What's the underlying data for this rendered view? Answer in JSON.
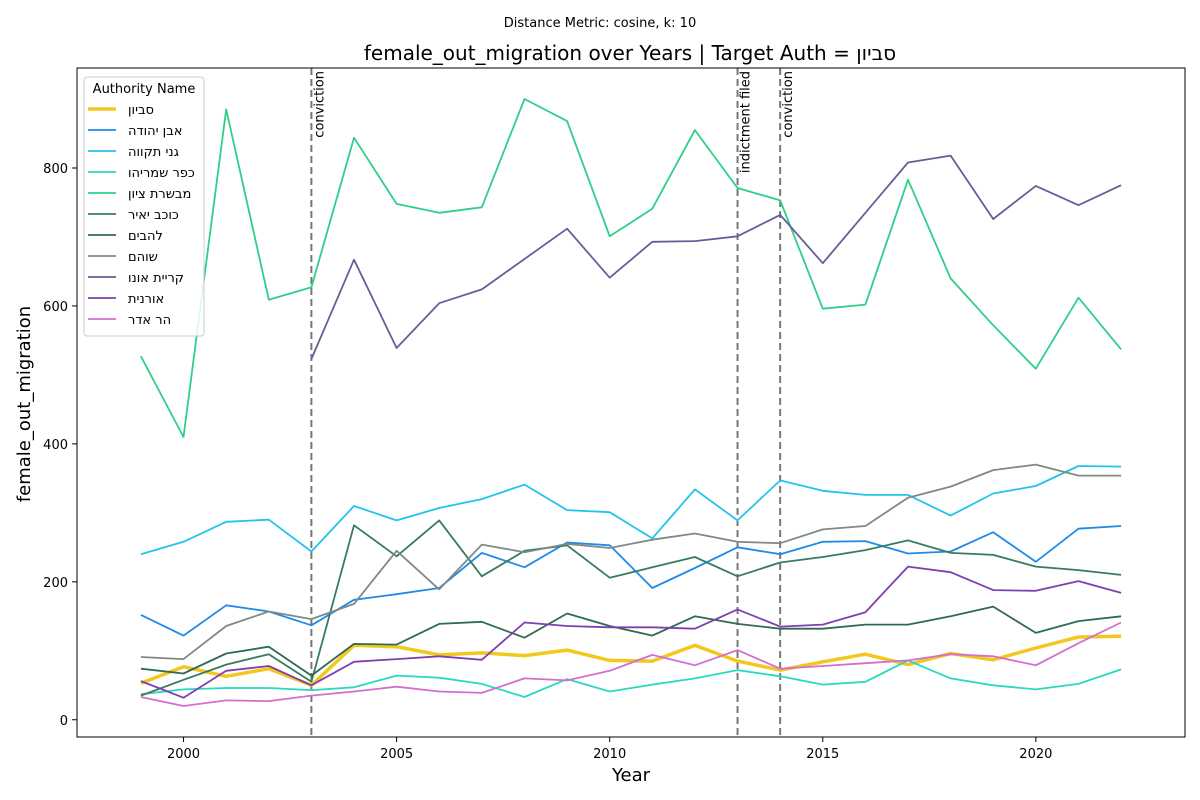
{
  "chart_data": {
    "type": "line",
    "subtitle": "Distance Metric: cosine, k: 10",
    "title": "female_out_migration over Years | Target Auth = סביון",
    "xlabel": "Year",
    "ylabel": "female_out_migration",
    "xlim": [
      1997.5,
      2023.5
    ],
    "ylim": [
      -25,
      945
    ],
    "xticks": [
      2000,
      2005,
      2010,
      2015,
      2020
    ],
    "yticks": [
      0,
      200,
      400,
      600,
      800
    ],
    "legend_title": "Authority Name",
    "legend_position": "top-left",
    "grid": false,
    "vlines": [
      {
        "x": 2003,
        "label": "conviction"
      },
      {
        "x": 2013,
        "label": "indictment filed"
      },
      {
        "x": 2014,
        "label": "conviction"
      }
    ],
    "series": [
      {
        "name": "סביון",
        "color": "#f2c81f",
        "width": 3.5,
        "x": [
          1999,
          2000,
          2001,
          2002,
          2003,
          2004,
          2005,
          2006,
          2007,
          2008,
          2009,
          2010,
          2011,
          2012,
          2013,
          2014,
          2015,
          2016,
          2017,
          2018,
          2019,
          2020,
          2021,
          2022
        ],
        "values": [
          53,
          77,
          63,
          74,
          50,
          108,
          106,
          94,
          97,
          93,
          101,
          86,
          85,
          108,
          85,
          72,
          84,
          95,
          80,
          96,
          87,
          104,
          120,
          121
        ]
      },
      {
        "name": "אבן יהודה",
        "color": "#1f8ae8",
        "width": 1.8,
        "x": [
          1999,
          2000,
          2001,
          2002,
          2003,
          2004,
          2005,
          2006,
          2007,
          2008,
          2009,
          2010,
          2011,
          2012,
          2013,
          2014,
          2015,
          2016,
          2017,
          2018,
          2019,
          2020,
          2021,
          2022
        ],
        "values": [
          152,
          122,
          166,
          157,
          137,
          174,
          182,
          191,
          242,
          221,
          257,
          253,
          191,
          220,
          250,
          240,
          258,
          259,
          241,
          244,
          272,
          229,
          277,
          281
        ]
      },
      {
        "name": "גני תקווה",
        "color": "#22c4ec",
        "width": 1.8,
        "x": [
          1999,
          2000,
          2001,
          2002,
          2003,
          2004,
          2005,
          2006,
          2007,
          2008,
          2009,
          2010,
          2011,
          2012,
          2013,
          2014,
          2015,
          2016,
          2017,
          2018,
          2019,
          2020,
          2021,
          2022
        ],
        "values": [
          240,
          258,
          287,
          290,
          244,
          310,
          289,
          307,
          320,
          341,
          304,
          301,
          263,
          334,
          289,
          347,
          332,
          326,
          326,
          296,
          328,
          339,
          368,
          367
        ]
      },
      {
        "name": "כפר שמריהו",
        "color": "#2ad9c0",
        "width": 1.8,
        "x": [
          1999,
          2000,
          2001,
          2002,
          2003,
          2004,
          2005,
          2006,
          2007,
          2008,
          2009,
          2010,
          2011,
          2012,
          2013,
          2014,
          2015,
          2016,
          2017,
          2018,
          2019,
          2020,
          2021,
          2022
        ],
        "values": [
          37,
          44,
          46,
          46,
          43,
          47,
          64,
          61,
          52,
          33,
          59,
          41,
          51,
          60,
          72,
          63,
          51,
          55,
          86,
          60,
          50,
          44,
          52,
          73
        ]
      },
      {
        "name": "מבשרת ציון",
        "color": "#2ecf88",
        "width": 1.8,
        "x": [
          1999,
          2000,
          2001,
          2002,
          2003,
          2004,
          2005,
          2006,
          2007,
          2008,
          2009,
          2010,
          2011,
          2012,
          2013,
          2014,
          2015,
          2016,
          2017,
          2018,
          2019,
          2020,
          2021,
          2022
        ],
        "values": [
          527,
          410,
          885,
          609,
          627,
          844,
          748,
          735,
          743,
          900,
          868,
          701,
          741,
          855,
          771,
          753,
          596,
          602,
          783,
          640,
          572,
          509,
          612,
          537
        ]
      },
      {
        "name": "כוכב יאיר",
        "color": "#3a7a5e",
        "width": 1.8,
        "x": [
          1999,
          2000,
          2001,
          2002,
          2003,
          2004,
          2005,
          2006,
          2007,
          2008,
          2009,
          2010,
          2011,
          2012,
          2013,
          2014,
          2015,
          2016,
          2017,
          2018,
          2019,
          2020,
          2021,
          2022
        ],
        "values": [
          35,
          58,
          80,
          95,
          55,
          282,
          237,
          289,
          208,
          245,
          253,
          206,
          221,
          236,
          208,
          228,
          236,
          246,
          260,
          242,
          239,
          222,
          217,
          210
        ]
      },
      {
        "name": "להבים",
        "color": "#2f6b52",
        "width": 1.8,
        "x": [
          1999,
          2000,
          2001,
          2002,
          2003,
          2004,
          2005,
          2006,
          2007,
          2008,
          2009,
          2010,
          2011,
          2012,
          2013,
          2014,
          2015,
          2016,
          2017,
          2018,
          2019,
          2020,
          2021,
          2022
        ],
        "values": [
          74,
          67,
          96,
          106,
          64,
          110,
          109,
          139,
          142,
          119,
          154,
          136,
          122,
          150,
          139,
          132,
          132,
          138,
          138,
          150,
          164,
          126,
          143,
          150
        ]
      },
      {
        "name": "שוהם",
        "color": "#7f8a85",
        "width": 1.8,
        "x": [
          1999,
          2000,
          2001,
          2002,
          2003,
          2004,
          2005,
          2006,
          2007,
          2008,
          2009,
          2010,
          2011,
          2012,
          2013,
          2014,
          2015,
          2016,
          2017,
          2018,
          2019,
          2020,
          2021,
          2022
        ],
        "values": [
          91,
          88,
          136,
          157,
          146,
          168,
          245,
          189,
          254,
          243,
          255,
          249,
          261,
          270,
          258,
          256,
          276,
          281,
          322,
          338,
          362,
          370,
          354,
          354
        ]
      },
      {
        "name": "קריית אונו",
        "color": "#655f99",
        "width": 1.8,
        "x": [
          1999,
          2000,
          2001,
          2002,
          2003,
          2004,
          2005,
          2006,
          2007,
          2008,
          2009,
          2010,
          2011,
          2012,
          2013,
          2014,
          2015,
          2016,
          2017,
          2018,
          2019,
          2020,
          2021,
          2022
        ],
        "values": [
          null,
          null,
          null,
          null,
          523,
          667,
          539,
          604,
          624,
          668,
          712,
          641,
          693,
          694,
          701,
          732,
          662,
          735,
          808,
          818,
          726,
          774,
          746,
          775
        ]
      },
      {
        "name": "אורנית",
        "color": "#7e3fb0",
        "width": 1.8,
        "x": [
          1999,
          2000,
          2001,
          2002,
          2003,
          2004,
          2005,
          2006,
          2007,
          2008,
          2009,
          2010,
          2011,
          2012,
          2013,
          2014,
          2015,
          2016,
          2017,
          2018,
          2019,
          2020,
          2021,
          2022
        ],
        "values": [
          56,
          32,
          71,
          78,
          50,
          84,
          88,
          92,
          87,
          141,
          136,
          134,
          134,
          132,
          160,
          135,
          138,
          156,
          222,
          214,
          188,
          187,
          201,
          184
        ]
      },
      {
        "name": "הר אדר",
        "color": "#d46fd0",
        "width": 1.8,
        "x": [
          1999,
          2000,
          2001,
          2002,
          2003,
          2004,
          2005,
          2006,
          2007,
          2008,
          2009,
          2010,
          2011,
          2012,
          2013,
          2014,
          2015,
          2016,
          2017,
          2018,
          2019,
          2020,
          2021,
          2022
        ],
        "values": [
          33,
          20,
          28,
          27,
          35,
          41,
          48,
          41,
          39,
          60,
          57,
          71,
          94,
          79,
          101,
          74,
          78,
          82,
          86,
          95,
          92,
          79,
          111,
          141
        ]
      }
    ]
  }
}
